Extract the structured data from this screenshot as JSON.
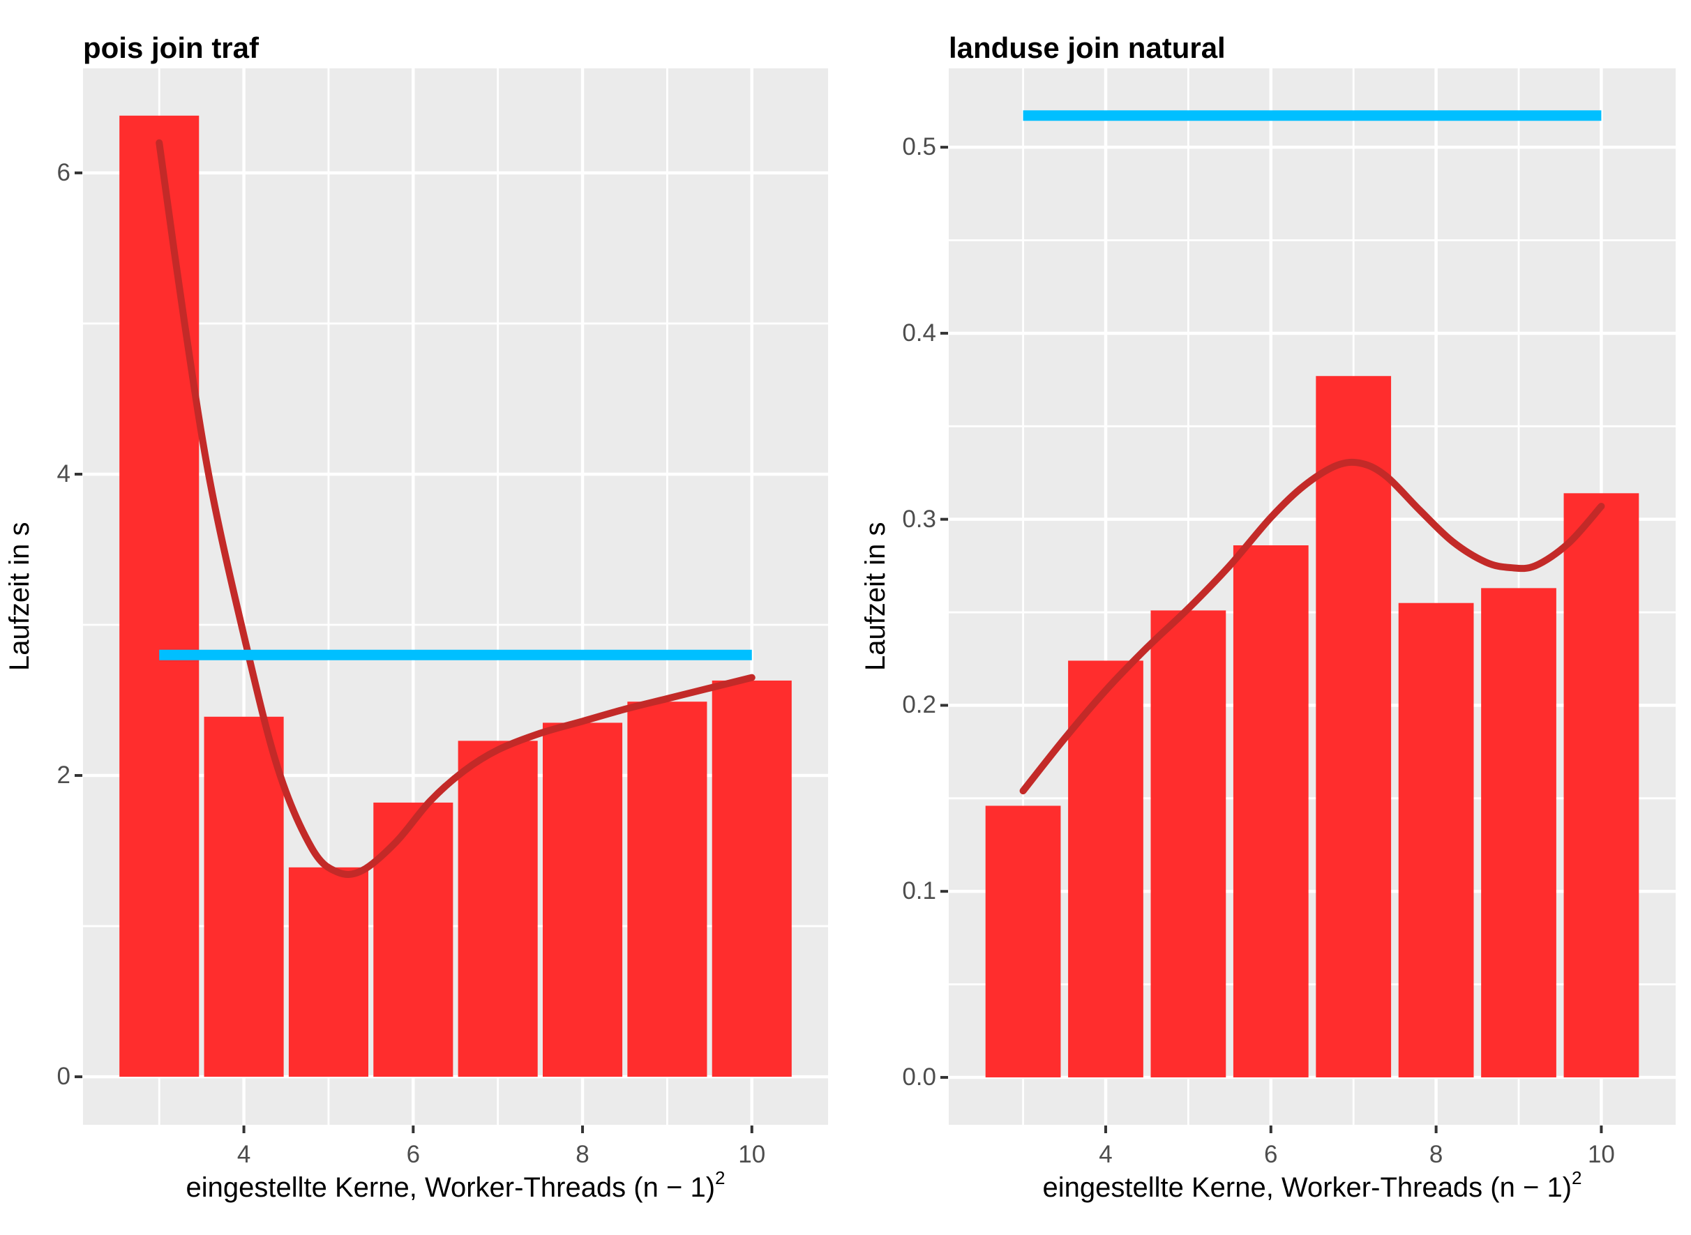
{
  "page": {
    "background": "#FFFFFF"
  },
  "colors": {
    "bar_fill": "#FF2D2D",
    "smooth_line": "#C32A28",
    "reference_line": "#00BFFF",
    "panel_bg": "#EBEBEB",
    "grid": "#FFFFFF",
    "tick_text": "#4D4D4D",
    "tick_mark": "#333333",
    "title_text": "#000000"
  },
  "chart_data": [
    {
      "type": "bar",
      "title": "pois join traf",
      "ylabel": "Laufzeit in s",
      "xlabel": "eingestellte Kerne, Worker-Threads (n − 1)",
      "xlabel_sup": "2",
      "legend": "none",
      "grid": "on",
      "categories": [
        3,
        4,
        5,
        6,
        7,
        8,
        9,
        10
      ],
      "values": [
        6.38,
        2.39,
        1.39,
        1.82,
        2.23,
        2.35,
        2.49,
        2.63
      ],
      "bar_width": 0.94,
      "reference_line_y": 2.8,
      "smooth_points": [
        [
          3,
          6.2
        ],
        [
          3.3,
          5.0
        ],
        [
          3.6,
          3.95
        ],
        [
          4,
          2.93
        ],
        [
          4.4,
          2.05
        ],
        [
          4.8,
          1.52
        ],
        [
          5.1,
          1.36
        ],
        [
          5.4,
          1.37
        ],
        [
          5.8,
          1.56
        ],
        [
          6.2,
          1.83
        ],
        [
          6.6,
          2.03
        ],
        [
          7,
          2.17
        ],
        [
          7.5,
          2.28
        ],
        [
          8,
          2.36
        ],
        [
          8.5,
          2.44
        ],
        [
          9,
          2.51
        ],
        [
          9.5,
          2.58
        ],
        [
          10,
          2.65
        ]
      ],
      "x_axis": {
        "range": [
          2.1,
          10.9
        ],
        "ticks": [
          4,
          6,
          8,
          10
        ],
        "tick_labels": [
          "4",
          "6",
          "8",
          "10"
        ],
        "minor": [
          3,
          5,
          7,
          9
        ]
      },
      "y_axis": {
        "range": [
          -0.319,
          6.694
        ],
        "ticks": [
          0,
          2,
          4,
          6
        ],
        "tick_labels": [
          "0",
          "2",
          "4",
          "6"
        ],
        "minor": [
          1,
          3,
          5
        ]
      }
    },
    {
      "type": "bar",
      "title": "landuse join natural",
      "ylabel": "Laufzeit in s",
      "xlabel": "eingestellte Kerne, Worker-Threads (n − 1)",
      "xlabel_sup": "2",
      "legend": "none",
      "grid": "on",
      "categories": [
        3,
        4,
        5,
        6,
        7,
        8,
        9,
        10
      ],
      "values": [
        0.146,
        0.224,
        0.251,
        0.286,
        0.377,
        0.255,
        0.263,
        0.314
      ],
      "bar_width": 0.91,
      "reference_line_y": 0.517,
      "smooth_points": [
        [
          3,
          0.154
        ],
        [
          3.5,
          0.182
        ],
        [
          4,
          0.208
        ],
        [
          4.5,
          0.231
        ],
        [
          5,
          0.252
        ],
        [
          5.5,
          0.275
        ],
        [
          6,
          0.301
        ],
        [
          6.4,
          0.318
        ],
        [
          6.8,
          0.329
        ],
        [
          7.1,
          0.33
        ],
        [
          7.4,
          0.323
        ],
        [
          7.8,
          0.305
        ],
        [
          8.2,
          0.288
        ],
        [
          8.6,
          0.277
        ],
        [
          8.9,
          0.274
        ],
        [
          9.2,
          0.275
        ],
        [
          9.6,
          0.287
        ],
        [
          10,
          0.307
        ]
      ],
      "x_axis": {
        "range": [
          2.1,
          10.9
        ],
        "ticks": [
          4,
          6,
          8,
          10
        ],
        "tick_labels": [
          "4",
          "6",
          "8",
          "10"
        ],
        "minor": [
          3,
          5,
          7,
          9
        ]
      },
      "y_axis": {
        "range": [
          -0.0255,
          0.5424
        ],
        "ticks": [
          0,
          0.1,
          0.2,
          0.3,
          0.4,
          0.5
        ],
        "tick_labels": [
          "0.0",
          "0.1",
          "0.2",
          "0.3",
          "0.4",
          "0.5"
        ],
        "minor": [
          0.05,
          0.15,
          0.25,
          0.35,
          0.45
        ]
      }
    }
  ]
}
